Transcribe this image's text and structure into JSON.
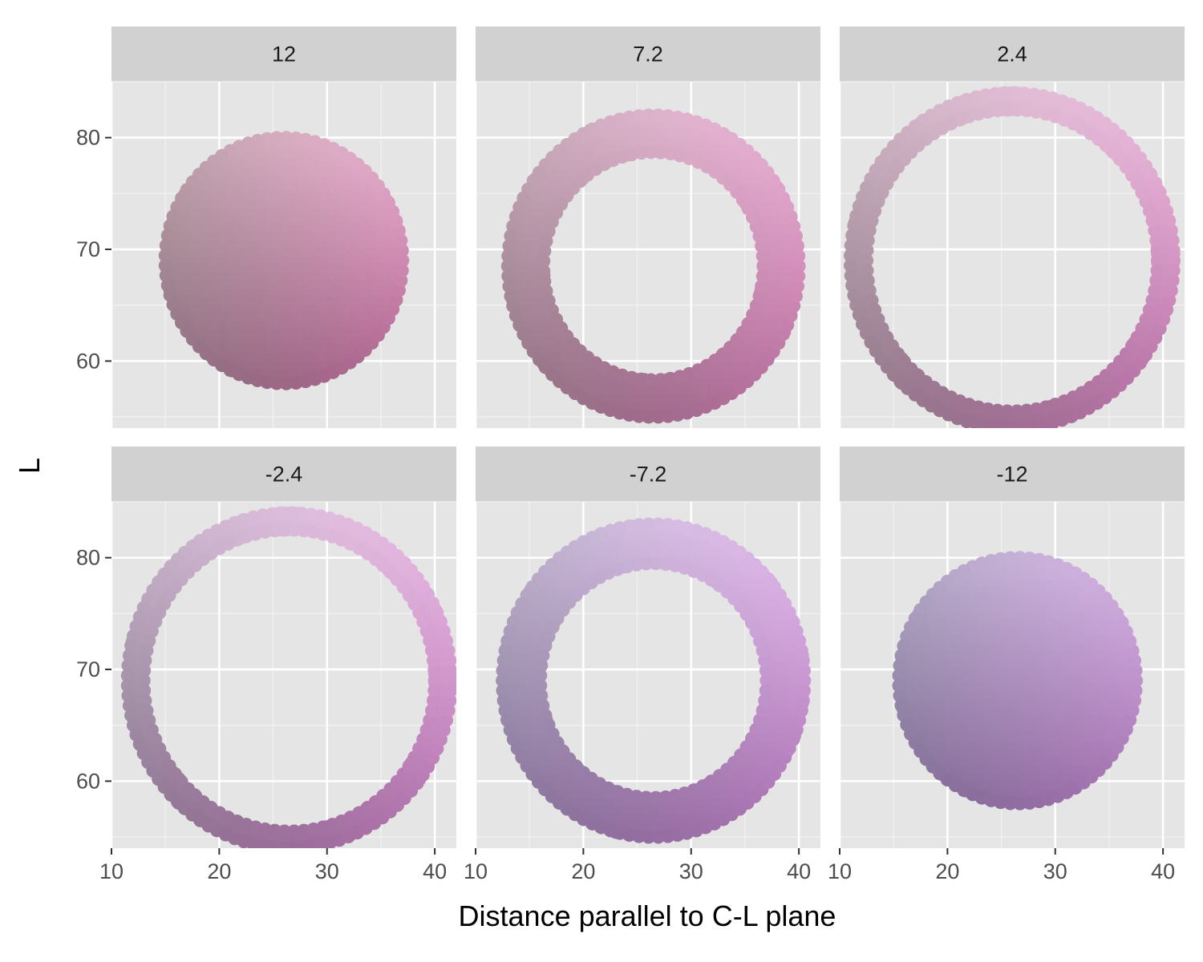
{
  "chart_data": {
    "type": "scatter",
    "xlabel": "Distance parallel to C-L plane",
    "ylabel": "L",
    "xlim": [
      10,
      42
    ],
    "ylim": [
      54,
      85
    ],
    "x_ticks": [
      10,
      20,
      30,
      40
    ],
    "y_ticks": [
      60,
      70,
      80
    ],
    "grid": true,
    "legend": "none",
    "panels": [
      {
        "label": "12",
        "center": [
          26.0,
          69.0
        ],
        "outer_radius": 11.0,
        "inner_radius": 0.0
      },
      {
        "label": "7.2",
        "center": [
          26.5,
          68.5
        ],
        "outer_radius": 13.5,
        "inner_radius": 10.2
      },
      {
        "label": "2.4",
        "center": [
          26.0,
          69.0
        ],
        "outer_radius": 15.0,
        "inner_radius": 13.5
      },
      {
        "label": "-2.4",
        "center": [
          26.5,
          69.0
        ],
        "outer_radius": 15.0,
        "inner_radius": 13.5
      },
      {
        "label": "-7.2",
        "center": [
          26.5,
          69.0
        ],
        "outer_radius": 14.0,
        "inner_radius": 10.5
      },
      {
        "label": "-12",
        "center": [
          26.5,
          69.0
        ],
        "outer_radius": 11.0,
        "inner_radius": 0.0
      }
    ],
    "panel_colors": [
      {
        "top_left": "#bfa5ad",
        "top_right": "#ecb2d2",
        "bottom_left": "#8a6d7c",
        "bottom_right": "#b0628f"
      },
      {
        "top_left": "#c9aebb",
        "top_right": "#efb6da",
        "bottom_left": "#8c6e7e",
        "bottom_right": "#b6699b"
      },
      {
        "top_left": "#cfb8c5",
        "top_right": "#f1bfe3",
        "bottom_left": "#8a7282",
        "bottom_right": "#b56aa3"
      },
      {
        "top_left": "#c8b8cc",
        "top_right": "#f0c0ea",
        "bottom_left": "#86708a",
        "bottom_right": "#b06bab"
      },
      {
        "top_left": "#c0b6cf",
        "top_right": "#e6bff0",
        "bottom_left": "#7f6e92",
        "bottom_right": "#ab6eb2"
      },
      {
        "top_left": "#b3aac5",
        "top_right": "#d8b6e8",
        "bottom_left": "#7e6b93",
        "bottom_right": "#a46fb0"
      }
    ],
    "colors": {
      "panel_bg": "#e5e5e5",
      "strip_bg": "#d1d1d1",
      "grid_major": "#ffffff",
      "grid_minor": "#f2f2f2",
      "tick_color": "#333333"
    }
  }
}
